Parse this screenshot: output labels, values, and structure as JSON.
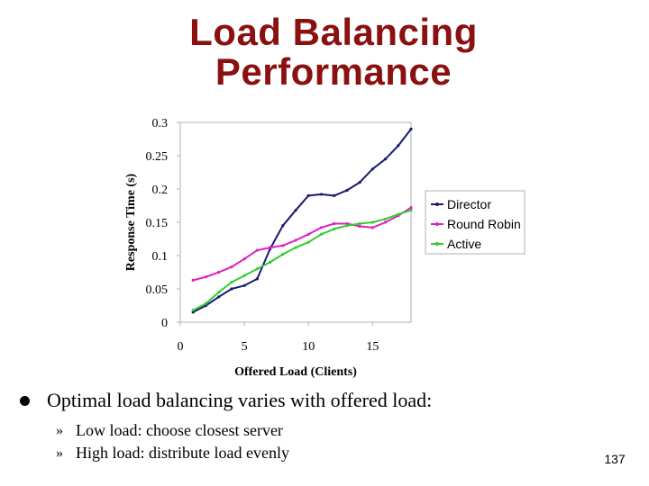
{
  "slide": {
    "title_line1": "Load Balancing",
    "title_line2": "Performance",
    "bullet": "Optimal load balancing varies with offered load:",
    "sub_marker": "»",
    "sub_bullets": [
      "Low load: choose closest server",
      "High load: distribute load evenly"
    ],
    "page_number": "137"
  },
  "chart_data": {
    "type": "line",
    "title": "",
    "xlabel": "Offered Load (Clients)",
    "ylabel": "Response Time (s)",
    "xlim": [
      0,
      18
    ],
    "ylim": [
      0,
      0.3
    ],
    "xticks": [
      "0",
      "5",
      "10",
      "15"
    ],
    "xtick_values": [
      0,
      5,
      10,
      15
    ],
    "yticks": [
      "0",
      "0.05",
      "0.1",
      "0.15",
      "0.2",
      "0.25",
      "0.3"
    ],
    "ytick_values": [
      0,
      0.05,
      0.1,
      0.15,
      0.2,
      0.25,
      0.3
    ],
    "grid": false,
    "legend": "right",
    "series": [
      {
        "name": "Director",
        "color": "#1a1a6e",
        "x": [
          1,
          2,
          3,
          4,
          5,
          6,
          7,
          8,
          9,
          10,
          11,
          12,
          13,
          14,
          15,
          16,
          17,
          18
        ],
        "y": [
          0.015,
          0.025,
          0.038,
          0.05,
          0.055,
          0.065,
          0.11,
          0.145,
          0.168,
          0.19,
          0.192,
          0.19,
          0.198,
          0.21,
          0.23,
          0.245,
          0.265,
          0.29
        ]
      },
      {
        "name": "Round Robin",
        "color": "#e020c0",
        "x": [
          1,
          2,
          3,
          4,
          5,
          6,
          7,
          8,
          9,
          10,
          11,
          12,
          13,
          14,
          15,
          16,
          17,
          18
        ],
        "y": [
          0.063,
          0.068,
          0.075,
          0.083,
          0.095,
          0.108,
          0.112,
          0.115,
          0.123,
          0.132,
          0.142,
          0.148,
          0.148,
          0.144,
          0.142,
          0.15,
          0.16,
          0.172
        ]
      },
      {
        "name": "Active",
        "color": "#33cc33",
        "x": [
          1,
          2,
          3,
          4,
          5,
          6,
          7,
          8,
          9,
          10,
          11,
          12,
          13,
          14,
          15,
          16,
          17,
          18
        ],
        "y": [
          0.018,
          0.028,
          0.045,
          0.06,
          0.07,
          0.08,
          0.09,
          0.102,
          0.112,
          0.12,
          0.132,
          0.14,
          0.145,
          0.148,
          0.15,
          0.155,
          0.162,
          0.168
        ]
      }
    ]
  }
}
